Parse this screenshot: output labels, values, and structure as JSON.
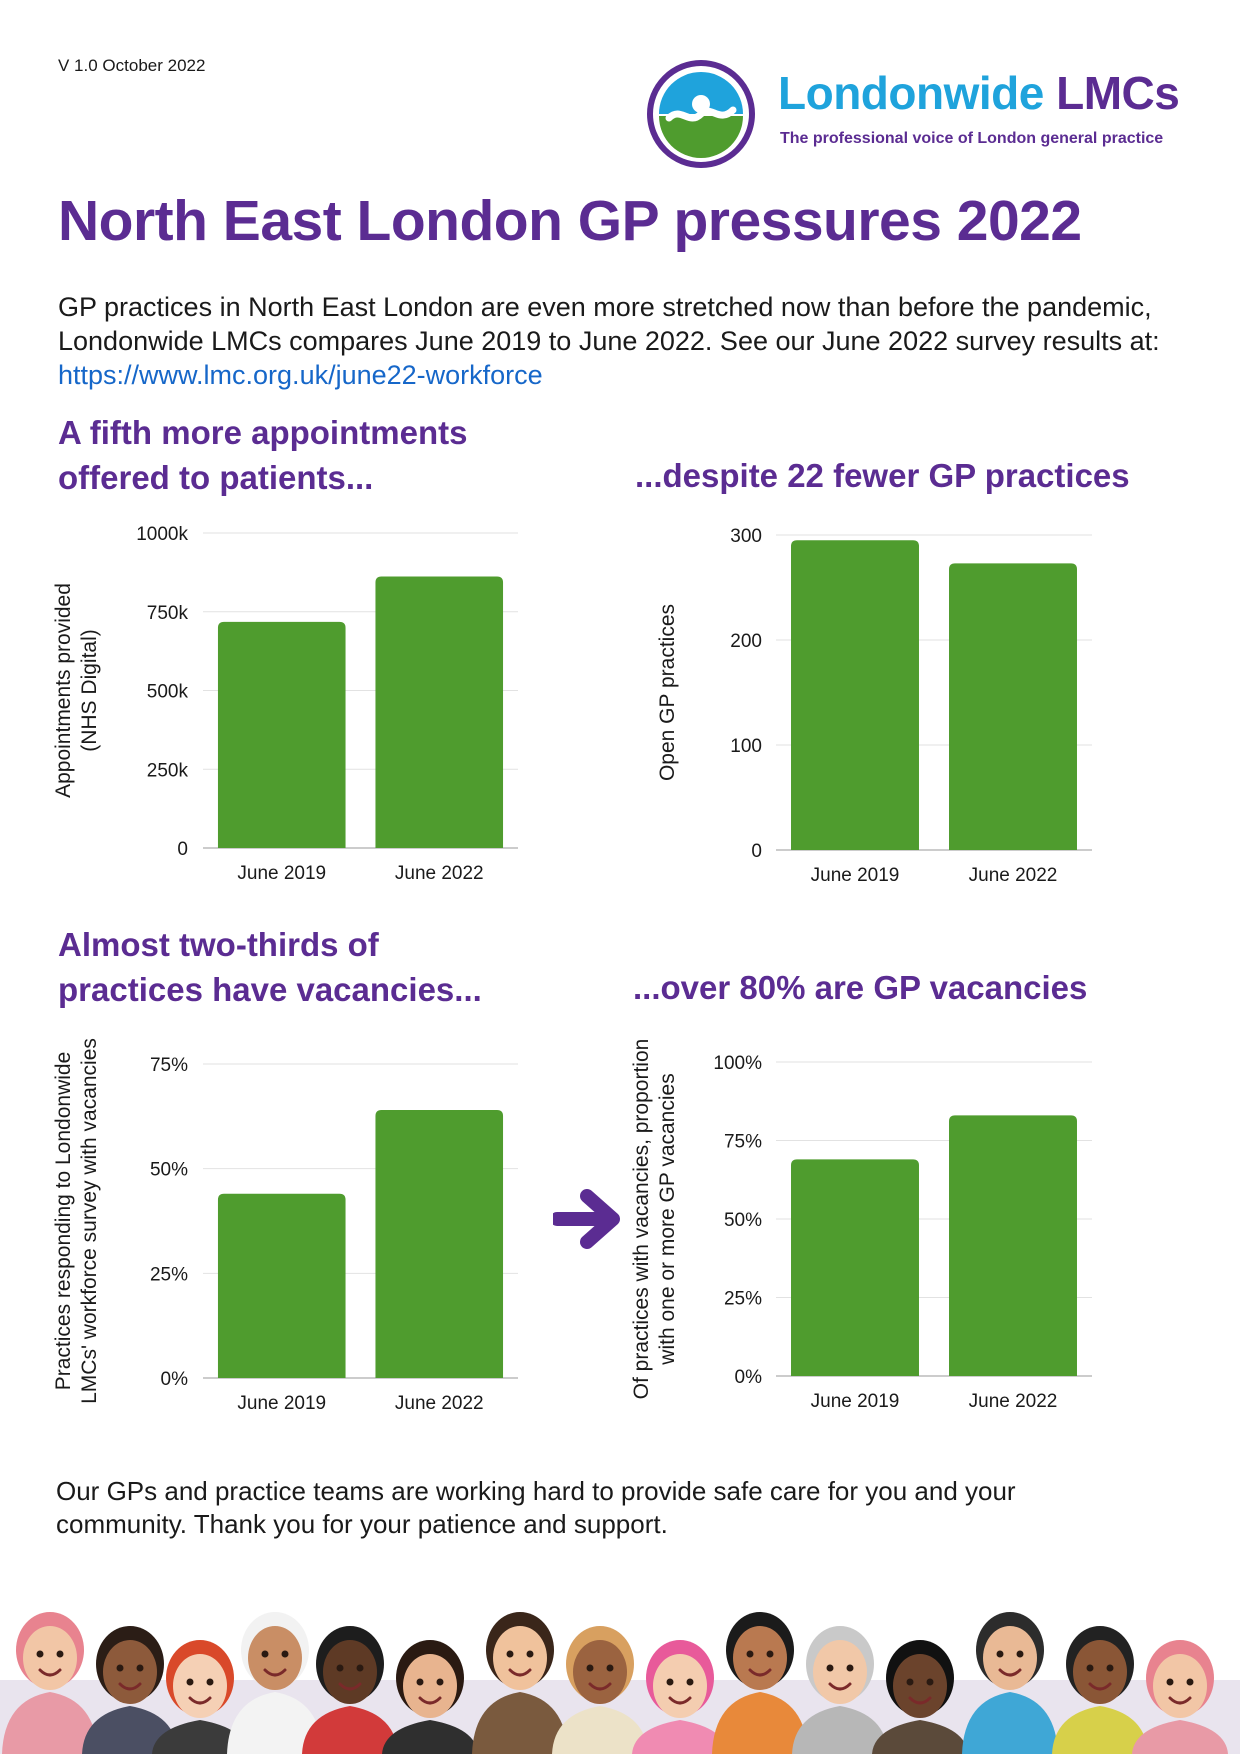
{
  "header": {
    "version": "V 1.0 October 2022",
    "logo_name_part1": "Londonwide",
    "logo_name_part2": "LMCs",
    "logo_tagline": "The professional voice of London general practice"
  },
  "title": "North East London GP pressures 2022",
  "intro": {
    "text": "GP practices in North East London are even more stretched now than before the pandemic, Londonwide LMCs compares June 2019 to June 2022. See our June 2022 survey results at:",
    "link": "https://www.lmc.org.uk/june22-workforce"
  },
  "sections": {
    "s1_line1": "A fifth more appointments",
    "s1_line2": "offered to patients...",
    "s2": "...despite 22 fewer GP practices",
    "s3_line1": "Almost two-thirds of",
    "s3_line2": "practices have vacancies...",
    "s4": "...over 80% are GP vacancies"
  },
  "chart_data": [
    {
      "type": "bar",
      "categories": [
        "June 2019",
        "June 2022"
      ],
      "values": [
        718000,
        862000
      ],
      "ylim": [
        0,
        1000000
      ],
      "yticks": [
        0,
        250000,
        500000,
        750000,
        1000000
      ],
      "ytick_labels": [
        "0",
        "250k",
        "500k",
        "750k",
        "1000k"
      ],
      "ylabel_lines": [
        "Appointments provided",
        "(NHS Digital)"
      ],
      "xlabel": "",
      "grid": true,
      "bar_color": "#4f9c2e"
    },
    {
      "type": "bar",
      "categories": [
        "June 2019",
        "June 2022"
      ],
      "values": [
        295,
        273
      ],
      "ylim": [
        0,
        300
      ],
      "yticks": [
        0,
        100,
        200,
        300
      ],
      "ytick_labels": [
        "0",
        "100",
        "200",
        "300"
      ],
      "ylabel_lines": [
        "Open GP practices"
      ],
      "xlabel": "",
      "grid": true,
      "bar_color": "#4f9c2e"
    },
    {
      "type": "bar",
      "categories": [
        "June 2019",
        "June 2022"
      ],
      "values": [
        44,
        64
      ],
      "ylim": [
        0,
        75
      ],
      "yticks": [
        0,
        25,
        50,
        75
      ],
      "ytick_labels": [
        "0%",
        "25%",
        "50%",
        "75%"
      ],
      "ylabel_lines": [
        "Practices responding to Londonwide",
        "LMCs' workforce survey with vacancies"
      ],
      "xlabel": "",
      "grid": true,
      "bar_color": "#4f9c2e"
    },
    {
      "type": "bar",
      "categories": [
        "June 2019",
        "June 2022"
      ],
      "values": [
        69,
        83
      ],
      "ylim": [
        0,
        100
      ],
      "yticks": [
        0,
        25,
        50,
        75,
        100
      ],
      "ytick_labels": [
        "0%",
        "25%",
        "50%",
        "75%",
        "100%"
      ],
      "ylabel_lines": [
        "Of practices with vacancies, proportion",
        "with one or more GP vacancies"
      ],
      "xlabel": "",
      "grid": true,
      "bar_color": "#4f9c2e"
    }
  ],
  "footer": {
    "line1": "Our GPs and practice teams are working hard to provide safe care for you and your",
    "line2": "community. Thank you for your patience and support."
  },
  "colors": {
    "brand_purple": "#5b2c92",
    "brand_blue": "#1fa3dc",
    "brand_green": "#4f9c2e",
    "link_blue": "#1667c9"
  }
}
